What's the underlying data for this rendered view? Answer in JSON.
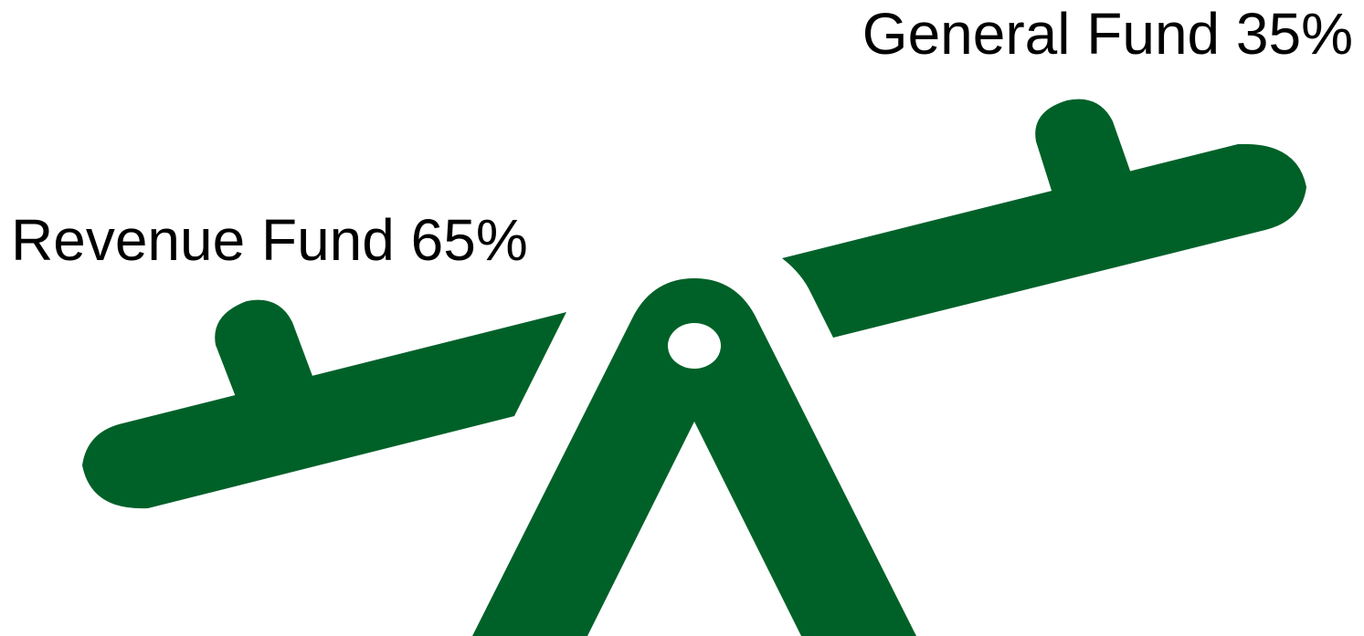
{
  "labels": {
    "left": "Revenue Fund 65%",
    "right": "General Fund 35%"
  },
  "colors": {
    "seesaw": "#006128",
    "background": "#ffffff",
    "text": "#000000"
  },
  "icon": "seesaw-icon"
}
